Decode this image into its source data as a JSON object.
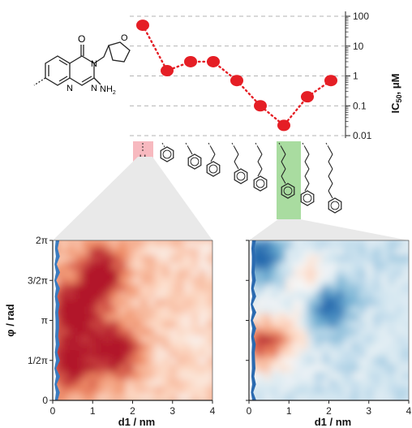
{
  "scaffold": {
    "oxygen_label": "O",
    "amine_label": "NH",
    "amine_subscript": "2",
    "ring_n1": "N",
    "ring_n2": "N",
    "ring_n3": "N",
    "ring_o": "O"
  },
  "colors": {
    "points": "#e51e25",
    "highlight_h": "#f7b9bf",
    "highlight_best": "#a9dca0",
    "gridline": "#9a9a9a",
    "heat_high": "#b2182b",
    "heat_low": "#2166ac"
  },
  "substituents": [
    {
      "label": "H",
      "chain_length": 0,
      "has_phenyl": false,
      "highlight": "pink"
    },
    {
      "chain_length": 0,
      "has_phenyl": true
    },
    {
      "chain_length": 1,
      "has_phenyl": true
    },
    {
      "chain_length": 2,
      "has_phenyl": true
    },
    {
      "chain_length": 3,
      "has_phenyl": true
    },
    {
      "chain_length": 4,
      "has_phenyl": true
    },
    {
      "chain_length": 5,
      "has_phenyl": true,
      "highlight": "green"
    },
    {
      "chain_length": 6,
      "has_phenyl": true
    },
    {
      "chain_length": 7,
      "has_phenyl": true
    }
  ],
  "chart_data": [
    {
      "type": "scatter",
      "categories": [
        "H",
        "Ph",
        "CH2Ph",
        "(CH2)2Ph",
        "(CH2)3Ph",
        "(CH2)4Ph",
        "(CH2)5Ph",
        "(CH2)6Ph",
        "(CH2)7Ph"
      ],
      "values": [
        50,
        1.5,
        3,
        3,
        0.7,
        0.1,
        0.022,
        0.2,
        0.7
      ],
      "ylabel_main": "IC",
      "ylabel_sub": "50",
      "ylabel_unit": ", μM",
      "yscale": "log",
      "ylim": [
        0.01,
        100
      ],
      "yticks": [
        "100",
        "10",
        "1",
        "0.1",
        "0.01"
      ],
      "grid": true,
      "line_style": "dotted"
    },
    {
      "type": "heatmap",
      "panel": "left",
      "xlabel": "d1 / nm",
      "ylabel": "φ / rad",
      "xlim": [
        0,
        4
      ],
      "xticks": [
        "0",
        "1",
        "2",
        "3",
        "4"
      ],
      "yticks": [
        "0",
        "1/2π",
        "π",
        "3/2π",
        "2π"
      ],
      "colormap": "diverging red-blue, mostly high (red)",
      "hotspots": [
        {
          "d1": 0.6,
          "phi": 3.5,
          "level": 0.95
        },
        {
          "d1": 1.2,
          "phi": 5.0,
          "level": 0.85
        },
        {
          "d1": 1.6,
          "phi": 2.0,
          "level": 0.9
        },
        {
          "d1": 0.5,
          "phi": 1.5,
          "level": 0.8
        }
      ]
    },
    {
      "type": "heatmap",
      "panel": "right",
      "xlabel": "d1 / nm",
      "xlim": [
        0,
        4
      ],
      "xticks": [
        "0",
        "1",
        "2",
        "3",
        "4"
      ],
      "colormap": "diverging red-blue, mostly low (blue)",
      "hotspots": [
        {
          "d1": 0.2,
          "phi": 2.2,
          "level": 0.95
        },
        {
          "d1": 0.9,
          "phi": 2.5,
          "level": 0.6
        },
        {
          "d1": 1.5,
          "phi": 4.8,
          "level": 0.45
        },
        {
          "d1": 2.0,
          "phi": 3.7,
          "level": -0.8
        },
        {
          "d1": 0.3,
          "phi": 5.8,
          "level": -0.85
        }
      ]
    }
  ]
}
